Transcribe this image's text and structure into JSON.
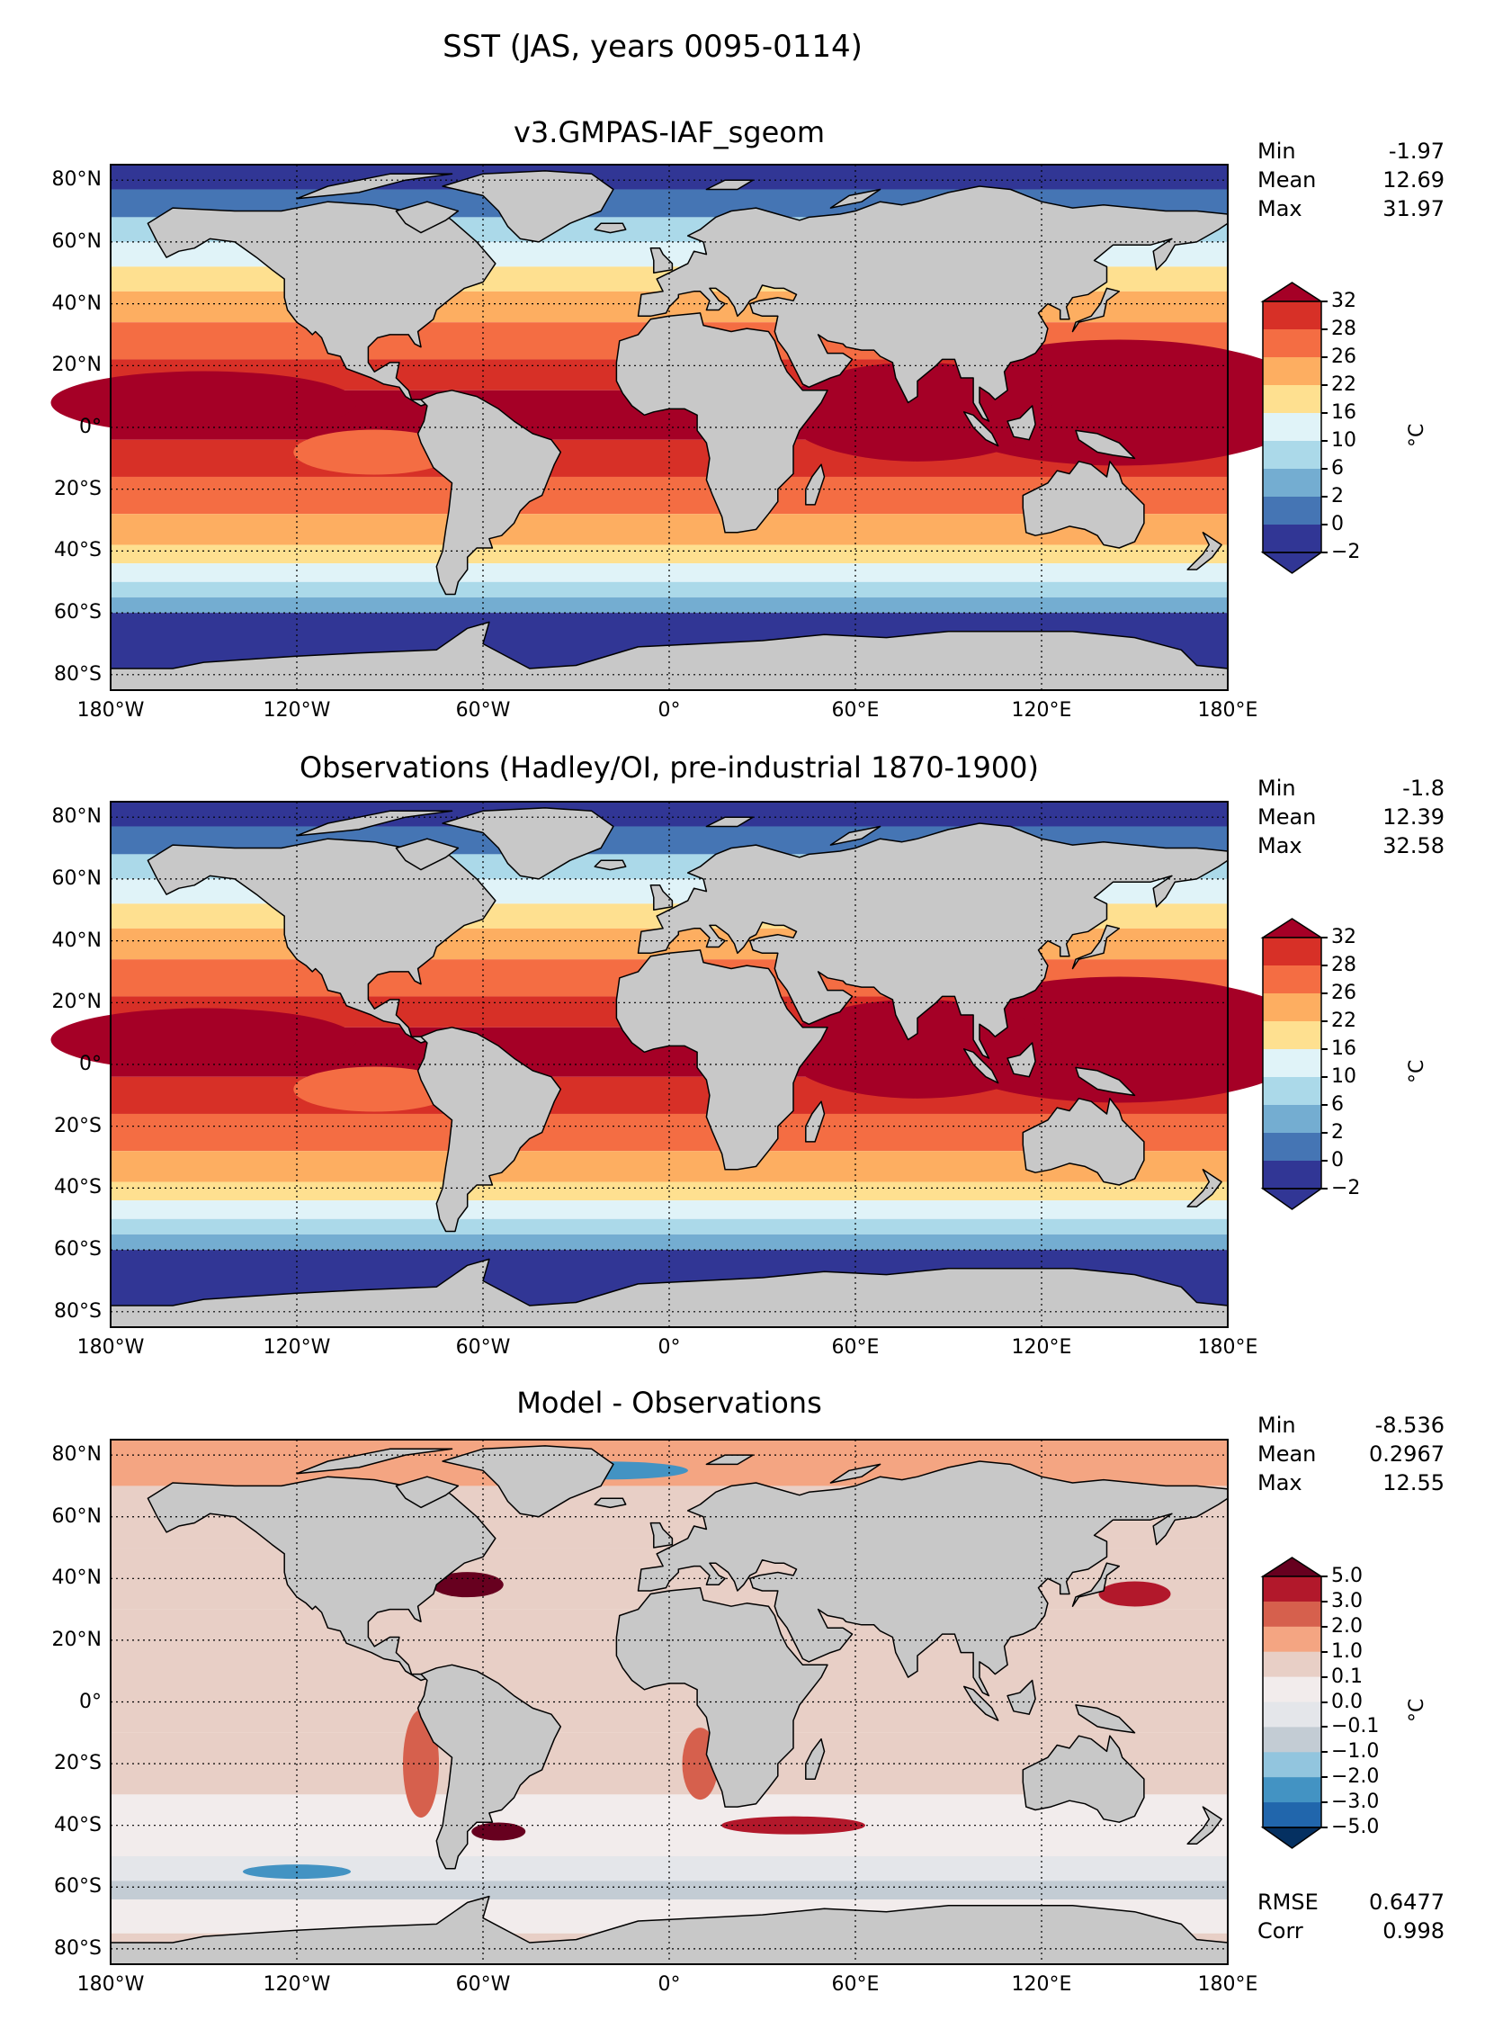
{
  "figure": {
    "suptitle": "SST (JAS, years 0095-0114)"
  },
  "axes": {
    "lon_ticks": [
      "180°W",
      "120°W",
      "60°W",
      "0°",
      "60°E",
      "120°E",
      "180°E"
    ],
    "lat_ticks": [
      "80°N",
      "60°N",
      "40°N",
      "20°N",
      "0°",
      "20°S",
      "40°S",
      "60°S",
      "80°S"
    ],
    "lon_values": [
      -180,
      -120,
      -60,
      0,
      60,
      120,
      180
    ],
    "lat_values": [
      80,
      60,
      40,
      20,
      0,
      -20,
      -40,
      -60,
      -80
    ]
  },
  "panels": [
    {
      "title": "v3.GMPAS-IAF_sgeom",
      "stats": [
        {
          "label": "Min",
          "value": "-1.97"
        },
        {
          "label": "Mean",
          "value": "12.69"
        },
        {
          "label": "Max",
          "value": "31.97"
        }
      ],
      "colorbar": {
        "unit": "°C",
        "levels": [
          "32",
          "28",
          "26",
          "22",
          "16",
          "10",
          "6",
          "2",
          "0",
          "−2"
        ],
        "colors": [
          "#a50026",
          "#d73027",
          "#f46d43",
          "#fdae61",
          "#fee090",
          "#e0f3f8",
          "#abd9e9",
          "#74add1",
          "#4575b4",
          "#313695"
        ]
      }
    },
    {
      "title": "Observations (Hadley/OI, pre-industrial 1870-1900)",
      "stats": [
        {
          "label": "Min",
          "value": "-1.8"
        },
        {
          "label": "Mean",
          "value": "12.39"
        },
        {
          "label": "Max",
          "value": "32.58"
        }
      ],
      "colorbar": {
        "unit": "°C",
        "levels": [
          "32",
          "28",
          "26",
          "22",
          "16",
          "10",
          "6",
          "2",
          "0",
          "−2"
        ],
        "colors": [
          "#a50026",
          "#d73027",
          "#f46d43",
          "#fdae61",
          "#fee090",
          "#e0f3f8",
          "#abd9e9",
          "#74add1",
          "#4575b4",
          "#313695"
        ]
      }
    },
    {
      "title": "Model - Observations",
      "stats": [
        {
          "label": "Min",
          "value": "-8.536"
        },
        {
          "label": "Mean",
          "value": "0.2967"
        },
        {
          "label": "Max",
          "value": "12.55"
        }
      ],
      "extra_stats": [
        {
          "label": "RMSE",
          "value": "0.6477"
        },
        {
          "label": "Corr",
          "value": "0.998"
        }
      ],
      "colorbar": {
        "unit": "°C",
        "levels": [
          "5.0",
          "3.0",
          "2.0",
          "1.0",
          "0.1",
          "0.0",
          "−0.1",
          "−1.0",
          "−2.0",
          "−3.0",
          "−5.0"
        ],
        "colors": [
          "#67001f",
          "#b2182b",
          "#d6604d",
          "#f4a582",
          "#e8cfc6",
          "#f2ecec",
          "#e4e6ea",
          "#c3ccd4",
          "#92c5de",
          "#4393c3",
          "#2166ac",
          "#053061"
        ]
      }
    }
  ],
  "colors": {
    "land": "#c8c8c8",
    "frame": "#000000"
  }
}
